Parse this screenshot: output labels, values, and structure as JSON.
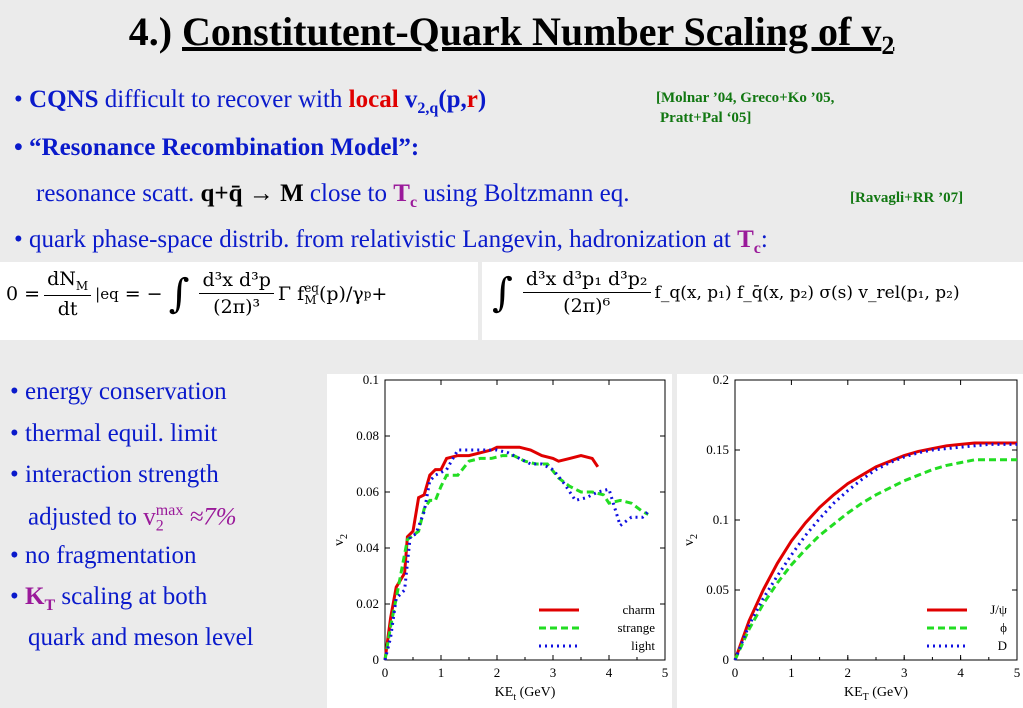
{
  "title": {
    "number": "4.)",
    "text": "Constitutent-Quark Number Scaling of v",
    "sub": "2"
  },
  "bullets_top": [
    {
      "bullet": "•",
      "cqns": "CQNS",
      "rest": " difficult to recover with ",
      "local": "local",
      "v": "v",
      "vsub": "2,q",
      "paren_open": "(",
      "p": "p",
      "comma": ",",
      "r": "r",
      "paren_close": ")"
    },
    {
      "bullet": "•",
      "text": "“Resonance Recombination Model”:"
    },
    {
      "pre": "resonance scatt. ",
      "qq": "q+q̄ → M",
      "mid": "  close to ",
      "T": "T",
      "Tsub": "c",
      "post": " using Boltzmann eq."
    },
    {
      "bullet": "•",
      "text": "quark phase-space distrib. from relativistic Langevin, hadronization at ",
      "T": "T",
      "Tsub": "c",
      "colon": ":"
    }
  ],
  "refs": {
    "molnar_1": "[Molnar ’04, Greco+Ko ’05,",
    "molnar_2": "Pratt+Pal ‘05]",
    "ravagli": "[Ravagli+RR ’07]"
  },
  "equation": {
    "lhs0": "0 =",
    "dN": "dN",
    "M": "M",
    "dt": "dt",
    "eq_sub": "|eq",
    "eq1": "= −",
    "num1": "d³x d³p",
    "den1": "(2π)³",
    "after1": "Γ f",
    "fM_sup": "eq",
    "fM_sub": "M",
    "after1b": "(p)/γ",
    "gamma_sub": "p",
    "plus": " +",
    "num2": "d³x d³p₁ d³p₂",
    "den2": "(2π)⁶",
    "after2": "f_q(x, p₁) f_q̄(x, p₂)  σ(s)  v_rel(p₁, p₂)"
  },
  "bullets_bottom": [
    {
      "bullet": "•",
      "text": "energy conservation"
    },
    {
      "bullet": "•",
      "text": "thermal equil. limit"
    },
    {
      "bullet": "•",
      "text": "interaction strength"
    },
    {
      "pre": "adjusted to ",
      "v": "v",
      "vsub": "2",
      "vsup": "max",
      "approx": " ≈7%"
    },
    {
      "bullet": "•",
      "text": "no fragmentation"
    },
    {
      "bullet": "•",
      "K": "K",
      "Ksub": "T",
      "text": " scaling at both"
    },
    {
      "text": "quark and meson level"
    }
  ],
  "colors": {
    "red": "#e00000",
    "green": "#22dd22",
    "blue": "#1010e0",
    "text": "#0a1acb"
  },
  "chart_data": [
    {
      "type": "line",
      "xlabel": "KE",
      "xlabel_sub": "t",
      "xlabel_unit": " (GeV)",
      "ylabel": "v",
      "ylabel_sub": "2",
      "xlim": [
        0,
        5
      ],
      "ylim": [
        0,
        0.1
      ],
      "xticks": [
        "0",
        "1",
        "2",
        "3",
        "4",
        "5"
      ],
      "yticks": [
        "0",
        "0.02",
        "0.04",
        "0.06",
        "0.08",
        "0.1"
      ],
      "legend_position": "bottom-right",
      "series": [
        {
          "name": "charm",
          "color": "#e00000",
          "dash": "",
          "points": [
            [
              0,
              0
            ],
            [
              0.1,
              0.015
            ],
            [
              0.2,
              0.026
            ],
            [
              0.35,
              0.031
            ],
            [
              0.4,
              0.044
            ],
            [
              0.5,
              0.046
            ],
            [
              0.6,
              0.058
            ],
            [
              0.7,
              0.059
            ],
            [
              0.8,
              0.066
            ],
            [
              0.9,
              0.068
            ],
            [
              1.0,
              0.068
            ],
            [
              1.1,
              0.072
            ],
            [
              1.3,
              0.073
            ],
            [
              1.5,
              0.073
            ],
            [
              1.7,
              0.074
            ],
            [
              1.9,
              0.075
            ],
            [
              2.0,
              0.076
            ],
            [
              2.2,
              0.076
            ],
            [
              2.4,
              0.076
            ],
            [
              2.6,
              0.075
            ],
            [
              2.8,
              0.073
            ],
            [
              3.0,
              0.072
            ],
            [
              3.1,
              0.071
            ],
            [
              3.3,
              0.072
            ],
            [
              3.5,
              0.073
            ],
            [
              3.7,
              0.072
            ],
            [
              3.8,
              0.069
            ]
          ]
        },
        {
          "name": "strange",
          "color": "#22dd22",
          "dash": "7,4",
          "points": [
            [
              0,
              0
            ],
            [
              0.1,
              0.012
            ],
            [
              0.2,
              0.022
            ],
            [
              0.4,
              0.043
            ],
            [
              0.6,
              0.046
            ],
            [
              0.7,
              0.054
            ],
            [
              0.8,
              0.057
            ],
            [
              0.9,
              0.057
            ],
            [
              1.0,
              0.062
            ],
            [
              1.1,
              0.066
            ],
            [
              1.3,
              0.066
            ],
            [
              1.5,
              0.071
            ],
            [
              1.7,
              0.072
            ],
            [
              1.9,
              0.072
            ],
            [
              2.1,
              0.073
            ],
            [
              2.3,
              0.073
            ],
            [
              2.5,
              0.071
            ],
            [
              2.7,
              0.07
            ],
            [
              2.9,
              0.07
            ],
            [
              3.1,
              0.065
            ],
            [
              3.3,
              0.062
            ],
            [
              3.5,
              0.06
            ],
            [
              3.7,
              0.06
            ],
            [
              3.9,
              0.059
            ],
            [
              4.0,
              0.056
            ],
            [
              4.2,
              0.057
            ],
            [
              4.4,
              0.056
            ],
            [
              4.6,
              0.053
            ],
            [
              4.7,
              0.052
            ]
          ]
        },
        {
          "name": "light",
          "color": "#1010e0",
          "dash": "2,4",
          "points": [
            [
              0,
              0
            ],
            [
              0.1,
              0.008
            ],
            [
              0.2,
              0.022
            ],
            [
              0.35,
              0.025
            ],
            [
              0.45,
              0.044
            ],
            [
              0.55,
              0.045
            ],
            [
              0.7,
              0.053
            ],
            [
              0.8,
              0.064
            ],
            [
              0.9,
              0.066
            ],
            [
              1.1,
              0.068
            ],
            [
              1.3,
              0.075
            ],
            [
              1.5,
              0.075
            ],
            [
              1.8,
              0.075
            ],
            [
              2.0,
              0.075
            ],
            [
              2.2,
              0.074
            ],
            [
              2.4,
              0.072
            ],
            [
              2.6,
              0.07
            ],
            [
              2.8,
              0.07
            ],
            [
              3.0,
              0.068
            ],
            [
              3.2,
              0.063
            ],
            [
              3.4,
              0.057
            ],
            [
              3.6,
              0.058
            ],
            [
              3.8,
              0.06
            ],
            [
              4.0,
              0.061
            ],
            [
              4.2,
              0.048
            ],
            [
              4.4,
              0.051
            ],
            [
              4.6,
              0.051
            ],
            [
              4.7,
              0.053
            ]
          ]
        }
      ]
    },
    {
      "type": "line",
      "xlabel": "KE",
      "xlabel_sub": "T",
      "xlabel_unit": " (GeV)",
      "ylabel": "v",
      "ylabel_sub": "2",
      "xlim": [
        0,
        5
      ],
      "ylim": [
        0,
        0.2
      ],
      "xticks": [
        "0",
        "1",
        "2",
        "3",
        "4",
        "5"
      ],
      "yticks": [
        "0",
        "0.05",
        "0.1",
        "0.15",
        "0.2"
      ],
      "legend_position": "bottom-right",
      "series": [
        {
          "name": "J/ψ",
          "color": "#e00000",
          "dash": "",
          "points": [
            [
              0,
              0
            ],
            [
              0.25,
              0.028
            ],
            [
              0.5,
              0.05
            ],
            [
              0.75,
              0.069
            ],
            [
              1.0,
              0.085
            ],
            [
              1.25,
              0.098
            ],
            [
              1.5,
              0.109
            ],
            [
              1.75,
              0.118
            ],
            [
              2.0,
              0.126
            ],
            [
              2.25,
              0.132
            ],
            [
              2.5,
              0.138
            ],
            [
              2.75,
              0.142
            ],
            [
              3.0,
              0.146
            ],
            [
              3.25,
              0.149
            ],
            [
              3.5,
              0.151
            ],
            [
              3.75,
              0.153
            ],
            [
              4.0,
              0.154
            ],
            [
              4.25,
              0.155
            ],
            [
              4.5,
              0.155
            ],
            [
              5.0,
              0.155
            ]
          ]
        },
        {
          "name": "ϕ",
          "color": "#22dd22",
          "dash": "7,4",
          "points": [
            [
              0,
              0
            ],
            [
              0.25,
              0.022
            ],
            [
              0.5,
              0.04
            ],
            [
              0.75,
              0.055
            ],
            [
              1.0,
              0.068
            ],
            [
              1.25,
              0.079
            ],
            [
              1.5,
              0.089
            ],
            [
              1.75,
              0.097
            ],
            [
              2.0,
              0.105
            ],
            [
              2.25,
              0.112
            ],
            [
              2.5,
              0.118
            ],
            [
              2.75,
              0.123
            ],
            [
              3.0,
              0.128
            ],
            [
              3.25,
              0.132
            ],
            [
              3.5,
              0.136
            ],
            [
              3.75,
              0.139
            ],
            [
              4.0,
              0.141
            ],
            [
              4.25,
              0.143
            ],
            [
              4.5,
              0.143
            ],
            [
              5.0,
              0.143
            ]
          ]
        },
        {
          "name": "D",
          "color": "#1010e0",
          "dash": "2,4",
          "points": [
            [
              0,
              0
            ],
            [
              0.25,
              0.025
            ],
            [
              0.5,
              0.044
            ],
            [
              0.75,
              0.06
            ],
            [
              1.0,
              0.075
            ],
            [
              1.25,
              0.089
            ],
            [
              1.5,
              0.101
            ],
            [
              1.75,
              0.112
            ],
            [
              2.0,
              0.121
            ],
            [
              2.25,
              0.129
            ],
            [
              2.5,
              0.136
            ],
            [
              2.75,
              0.141
            ],
            [
              3.0,
              0.145
            ],
            [
              3.25,
              0.148
            ],
            [
              3.5,
              0.15
            ],
            [
              3.75,
              0.151
            ],
            [
              4.0,
              0.152
            ],
            [
              4.25,
              0.153
            ],
            [
              4.5,
              0.154
            ],
            [
              5.0,
              0.154
            ]
          ]
        }
      ]
    }
  ]
}
